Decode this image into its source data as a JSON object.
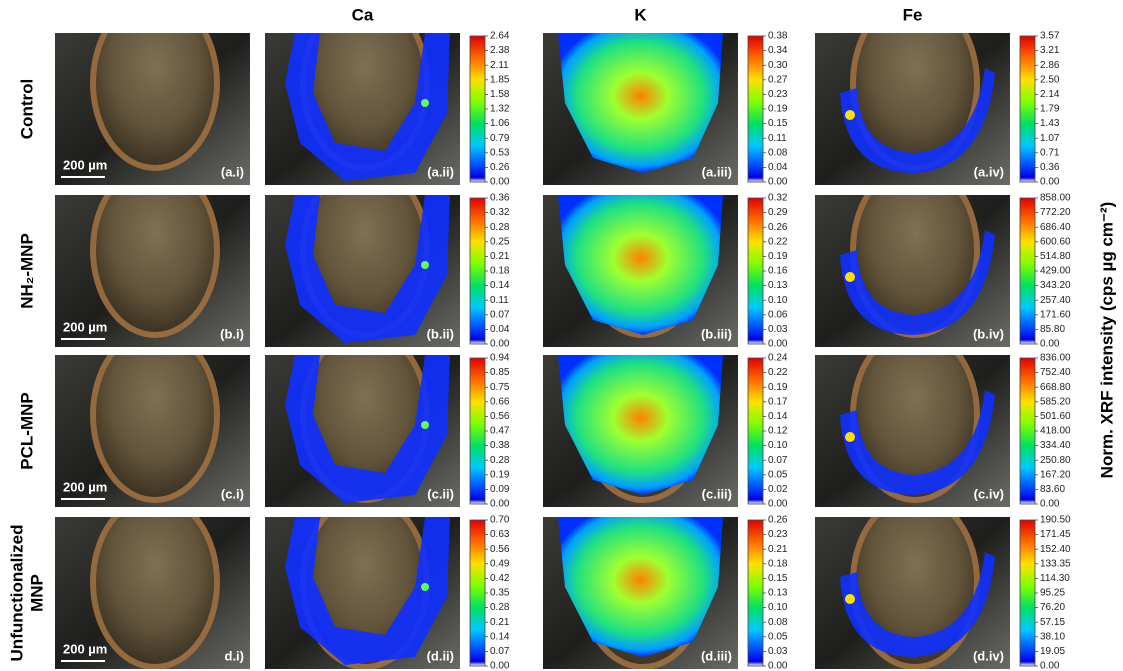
{
  "columns": [
    "Ca",
    "K",
    "Fe"
  ],
  "colorbar_label": "Norm. XRF intensity (cps µg cm⁻²)",
  "rows": [
    {
      "label": [
        "Control"
      ],
      "scale_bar": "200 µm",
      "panels": [
        "(a.i)",
        "(a.ii)",
        "(a.iii)",
        "(a.iv)"
      ],
      "colorbars": [
        [
          "2.64",
          "2.38",
          "2.11",
          "1.85",
          "1.58",
          "1.32",
          "1.06",
          "0.79",
          "0.53",
          "0.26",
          "0.00"
        ],
        [
          "0.38",
          "0.34",
          "0.30",
          "0.27",
          "0.23",
          "0.19",
          "0.15",
          "0.11",
          "0.08",
          "0.04",
          "0.00"
        ],
        [
          "3.57",
          "3.21",
          "2.86",
          "2.50",
          "2.14",
          "1.79",
          "1.43",
          "1.07",
          "0.71",
          "0.36",
          "0.00"
        ]
      ]
    },
    {
      "label": [
        "NH₂-MNP"
      ],
      "scale_bar": "200 µm",
      "panels": [
        "(b.i)",
        "(b.ii)",
        "(b.iii)",
        "(b.iv)"
      ],
      "colorbars": [
        [
          "0.36",
          "0.32",
          "0.28",
          "0.25",
          "0.21",
          "0.18",
          "0.14",
          "0.11",
          "0.07",
          "0.04",
          "0.00"
        ],
        [
          "0.32",
          "0.29",
          "0.26",
          "0.22",
          "0.19",
          "0.16",
          "0.13",
          "0.10",
          "0.06",
          "0.03",
          "0.00"
        ],
        [
          "858.00",
          "772.20",
          "686.40",
          "600.60",
          "514.80",
          "429.00",
          "343.20",
          "257.40",
          "171.60",
          "85.80",
          "0.00"
        ]
      ]
    },
    {
      "label": [
        "PCL-MNP"
      ],
      "scale_bar": "200 µm",
      "panels": [
        "(c.i)",
        "(c.ii)",
        "(c.iii)",
        "(c.iv)"
      ],
      "colorbars": [
        [
          "0.94",
          "0.85",
          "0.75",
          "0.66",
          "0.56",
          "0.47",
          "0.38",
          "0.28",
          "0.19",
          "0.09",
          "0.00"
        ],
        [
          "0.24",
          "0.22",
          "0.19",
          "0.17",
          "0.14",
          "0.12",
          "0.10",
          "0.07",
          "0.05",
          "0.02",
          "0.00"
        ],
        [
          "836.00",
          "752.40",
          "668.80",
          "585.20",
          "501.60",
          "418.00",
          "334.40",
          "250.80",
          "167.20",
          "83.60",
          "0.00"
        ]
      ]
    },
    {
      "label": [
        "Unfunctionalized",
        "MNP"
      ],
      "scale_bar": "200 µm",
      "panels": [
        "d.i)",
        "(d.ii)",
        "(d.iii)",
        "(d.iv)"
      ],
      "colorbars": [
        [
          "0.70",
          "0.63",
          "0.56",
          "0.49",
          "0.42",
          "0.35",
          "0.28",
          "0.21",
          "0.14",
          "0.07",
          "0.00"
        ],
        [
          "0.26",
          "0.23",
          "0.21",
          "0.18",
          "0.15",
          "0.13",
          "0.10",
          "0.08",
          "0.05",
          "0.03",
          "0.00"
        ],
        [
          "190.50",
          "171.45",
          "152.40",
          "133.35",
          "114.30",
          "95.25",
          "76.20",
          "57.15",
          "38.10",
          "19.05",
          "0.00"
        ]
      ]
    }
  ]
}
